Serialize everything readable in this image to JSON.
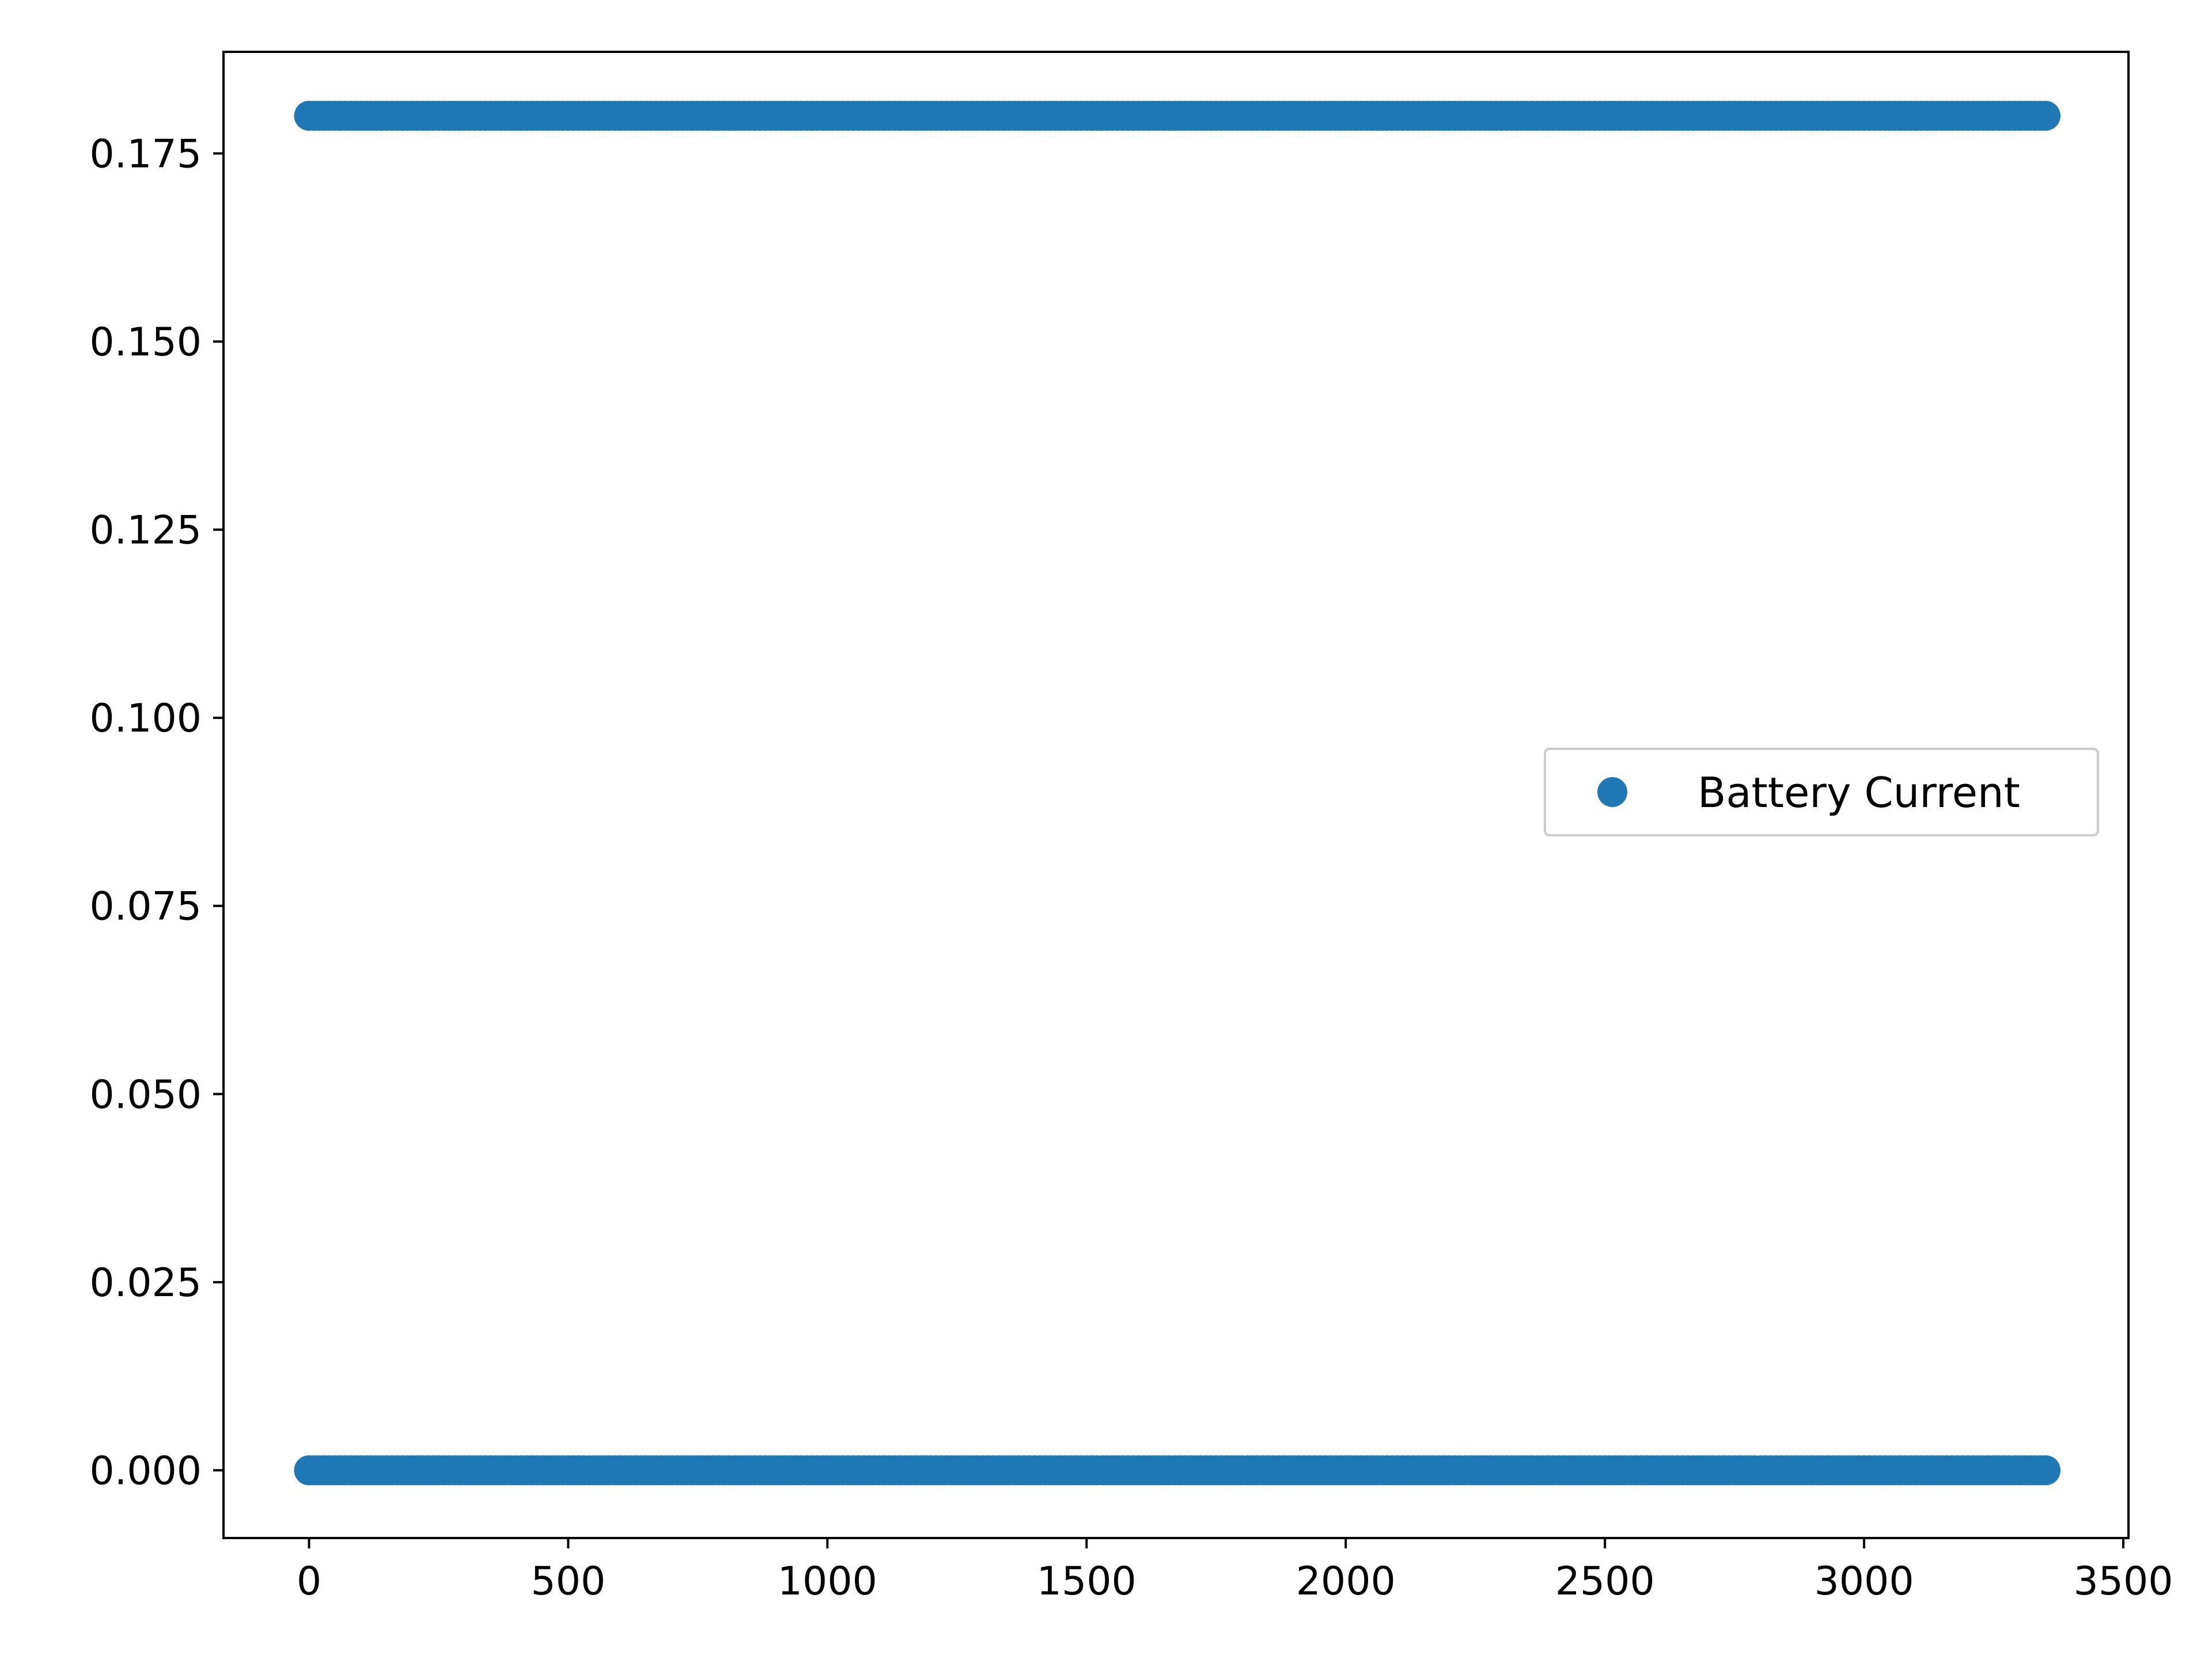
{
  "chart_data": {
    "type": "scatter",
    "title": "",
    "xlabel": "",
    "ylabel": "",
    "xlim": [
      -165,
      3510
    ],
    "ylim": [
      -0.009,
      0.1885
    ],
    "xticks": [
      0,
      500,
      1000,
      1500,
      2000,
      2500,
      3000,
      3500
    ],
    "xtick_labels": [
      "0",
      "500",
      "1000",
      "1500",
      "2000",
      "2500",
      "3000",
      "3500"
    ],
    "yticks": [
      0.0,
      0.025,
      0.05,
      0.075,
      0.1,
      0.125,
      0.15,
      0.175
    ],
    "ytick_labels": [
      "0.000",
      "0.025",
      "0.050",
      "0.075",
      "0.100",
      "0.125",
      "0.150",
      "0.175"
    ],
    "grid": false,
    "legend": {
      "placement": "center-right",
      "entries": [
        "Battery Current"
      ]
    },
    "series": [
      {
        "name": "Battery Current",
        "color": "#1f77b4",
        "marker": "circle",
        "levels": [
          0.0,
          0.18
        ],
        "x_range": [
          0,
          3350
        ],
        "x_step": 10
      }
    ]
  }
}
